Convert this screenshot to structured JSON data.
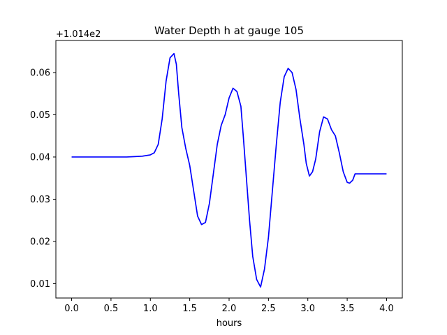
{
  "chart_data": {
    "type": "line",
    "title": "Water Depth h at gauge 105",
    "xlabel": "hours",
    "ylabel": "",
    "y_offset_label": "+1.014e2",
    "xlim": [
      -0.2,
      4.2
    ],
    "ylim": [
      0.0066,
      0.0676
    ],
    "x_ticks": [
      0.0,
      0.5,
      1.0,
      1.5,
      2.0,
      2.5,
      3.0,
      3.5,
      4.0
    ],
    "x_tick_labels": [
      "0.0",
      "0.5",
      "1.0",
      "1.5",
      "2.0",
      "2.5",
      "3.0",
      "3.5",
      "4.0"
    ],
    "y_ticks": [
      0.01,
      0.02,
      0.03,
      0.04,
      0.05,
      0.06
    ],
    "y_tick_labels": [
      "0.01",
      "0.02",
      "0.03",
      "0.04",
      "0.05",
      "0.06"
    ],
    "grid": false,
    "series": [
      {
        "color": "#0000ff",
        "x": [
          0.0,
          0.1,
          0.2,
          0.3,
          0.4,
          0.5,
          0.6,
          0.7,
          0.8,
          0.9,
          1.0,
          1.05,
          1.1,
          1.15,
          1.2,
          1.25,
          1.3,
          1.33,
          1.36,
          1.4,
          1.45,
          1.5,
          1.55,
          1.6,
          1.65,
          1.7,
          1.75,
          1.8,
          1.85,
          1.9,
          1.95,
          2.0,
          2.05,
          2.1,
          2.15,
          2.18,
          2.22,
          2.26,
          2.3,
          2.35,
          2.4,
          2.45,
          2.5,
          2.55,
          2.6,
          2.65,
          2.7,
          2.75,
          2.8,
          2.85,
          2.9,
          2.95,
          2.98,
          3.02,
          3.06,
          3.1,
          3.15,
          3.2,
          3.25,
          3.3,
          3.35,
          3.4,
          3.45,
          3.5,
          3.53,
          3.57,
          3.6,
          3.65,
          3.7,
          3.75,
          3.8,
          3.85,
          3.9,
          3.95,
          4.0
        ],
        "y": [
          0.04,
          0.04,
          0.04,
          0.04,
          0.04,
          0.04,
          0.04,
          0.04,
          0.0401,
          0.0402,
          0.0405,
          0.041,
          0.043,
          0.049,
          0.058,
          0.0635,
          0.0645,
          0.062,
          0.055,
          0.047,
          0.042,
          0.038,
          0.032,
          0.026,
          0.024,
          0.0245,
          0.029,
          0.036,
          0.043,
          0.0475,
          0.05,
          0.054,
          0.0563,
          0.0555,
          0.052,
          0.045,
          0.035,
          0.025,
          0.0165,
          0.011,
          0.0092,
          0.0135,
          0.021,
          0.032,
          0.043,
          0.053,
          0.059,
          0.061,
          0.06,
          0.056,
          0.049,
          0.043,
          0.0385,
          0.0355,
          0.0365,
          0.0395,
          0.046,
          0.0495,
          0.049,
          0.0465,
          0.045,
          0.041,
          0.0365,
          0.034,
          0.0338,
          0.0345,
          0.036,
          0.036,
          0.036,
          0.036,
          0.036,
          0.036,
          0.036,
          0.036,
          0.036
        ]
      }
    ]
  }
}
